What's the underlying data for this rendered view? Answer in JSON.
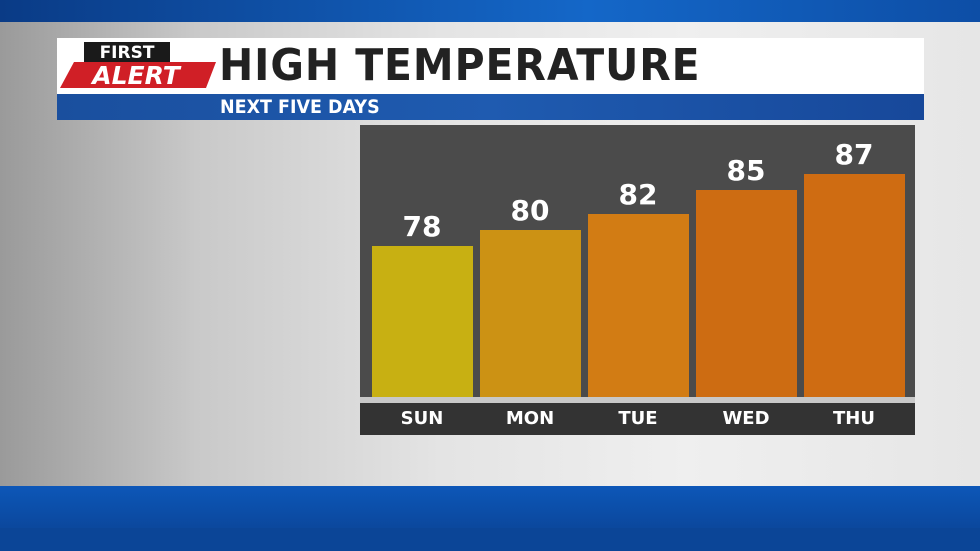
{
  "logo": {
    "line1": "FIRST",
    "line2": "ALERT"
  },
  "header": {
    "title": "HIGH TEMPERATURE",
    "subtitle": "NEXT FIVE DAYS"
  },
  "chart_data": {
    "type": "bar",
    "title": "HIGH TEMPERATURE",
    "subtitle": "NEXT FIVE DAYS",
    "categories": [
      "SUN",
      "MON",
      "TUE",
      "WED",
      "THU"
    ],
    "values": [
      78,
      80,
      82,
      85,
      87
    ],
    "colors": [
      "#c8b012",
      "#cc9214",
      "#d27c14",
      "#cd6c12",
      "#cf6c12"
    ],
    "grid": false
  }
}
